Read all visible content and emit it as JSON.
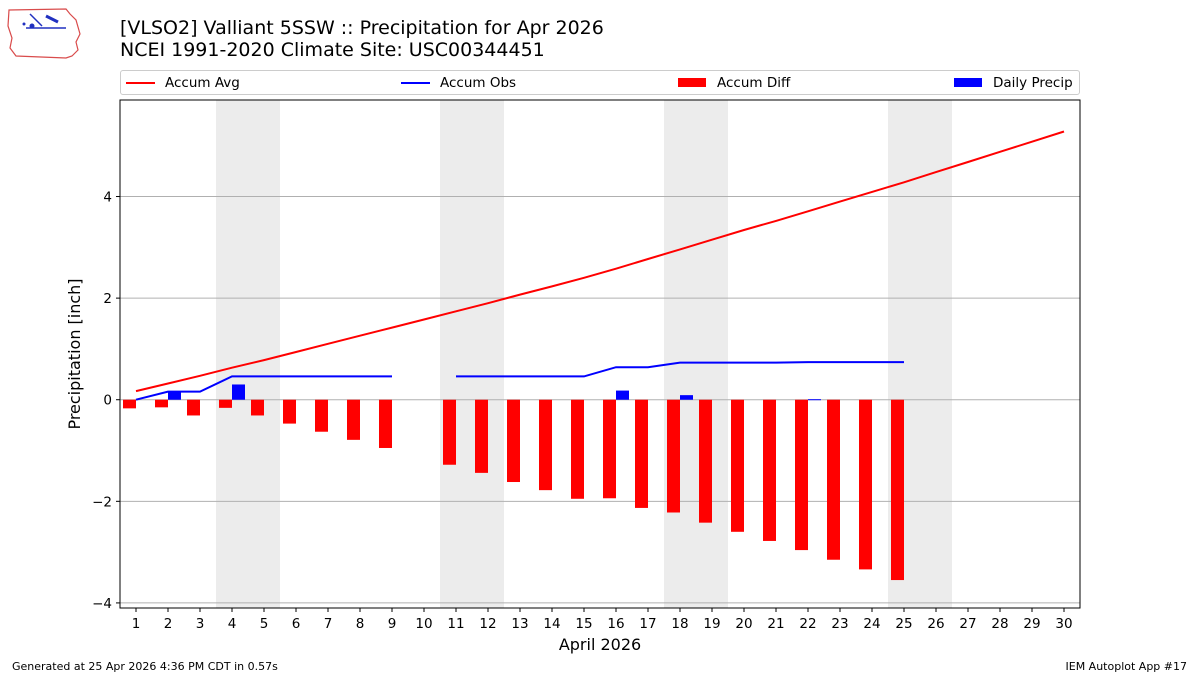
{
  "header": {
    "title_line1": "[VLSO2] Valliant 5SSW :: Precipitation for Apr 2026",
    "title_line2": "NCEI 1991-2020 Climate Site: USC00344451"
  },
  "logo": {
    "icon": "iem-logo-icon",
    "text": "IEM"
  },
  "footer": {
    "generated": "Generated at 25 Apr 2026 4:36 PM CDT in 0.57s",
    "app": "IEM Autoplot App #17"
  },
  "colors": {
    "accum_avg": "#ff0000",
    "accum_obs": "#0000ff",
    "accum_diff": "#ff0000",
    "daily_precip": "#0000ff",
    "weekend_band": "#ececec",
    "grid": "#b0b0b0"
  },
  "chart_data": {
    "type": "bar",
    "xlabel": "April 2026",
    "ylabel": "Precipitation [inch]",
    "xlim": [
      0.5,
      30.5
    ],
    "ylim": [
      -4.1,
      5.9
    ],
    "yticks": [
      -4,
      -2,
      0,
      2,
      4
    ],
    "ytick_labels": [
      "−4",
      "−2",
      "0",
      "2",
      "4"
    ],
    "categories": [
      1,
      2,
      3,
      4,
      5,
      6,
      7,
      8,
      9,
      10,
      11,
      12,
      13,
      14,
      15,
      16,
      17,
      18,
      19,
      20,
      21,
      22,
      23,
      24,
      25,
      26,
      27,
      28,
      29,
      30
    ],
    "grid": "horizontal",
    "legend_placement": "top, above plot",
    "weekend_bands": [
      [
        4,
        5
      ],
      [
        11,
        12
      ],
      [
        18,
        19
      ],
      [
        25,
        26
      ]
    ],
    "series": [
      {
        "name": "Accum Avg",
        "kind": "line",
        "values": [
          0.17,
          0.32,
          0.47,
          0.63,
          0.78,
          0.94,
          1.1,
          1.26,
          1.42,
          1.58,
          1.74,
          1.9,
          2.07,
          2.23,
          2.4,
          2.58,
          2.77,
          2.96,
          3.15,
          3.34,
          3.52,
          3.71,
          3.9,
          4.09,
          4.28,
          4.48,
          4.68,
          4.88,
          5.08,
          5.28
        ]
      },
      {
        "name": "Accum Obs",
        "kind": "line",
        "values": [
          0.0,
          0.16,
          0.16,
          0.46,
          0.46,
          0.46,
          0.46,
          0.46,
          0.46,
          null,
          0.46,
          0.46,
          0.46,
          0.46,
          0.46,
          0.64,
          0.64,
          0.73,
          0.73,
          0.73,
          0.73,
          0.74,
          0.74,
          0.74,
          0.74,
          null,
          null,
          null,
          null,
          null
        ]
      },
      {
        "name": "Accum Diff",
        "kind": "bar",
        "values": [
          -0.17,
          -0.15,
          -0.31,
          -0.16,
          -0.31,
          -0.47,
          -0.63,
          -0.79,
          -0.95,
          null,
          -1.28,
          -1.44,
          -1.62,
          -1.78,
          -1.95,
          -1.94,
          -2.13,
          -2.22,
          -2.42,
          -2.6,
          -2.78,
          -2.96,
          -3.15,
          -3.34,
          -3.55,
          null,
          null,
          null,
          null,
          null
        ]
      },
      {
        "name": "Daily Precip",
        "kind": "bar",
        "values": [
          0,
          0.16,
          0,
          0.3,
          0,
          0,
          0,
          0,
          0,
          null,
          0,
          0,
          0,
          0,
          0,
          0.18,
          0,
          0.09,
          0,
          0,
          0,
          0.01,
          0,
          0,
          0,
          null,
          null,
          null,
          null,
          null
        ]
      }
    ]
  }
}
